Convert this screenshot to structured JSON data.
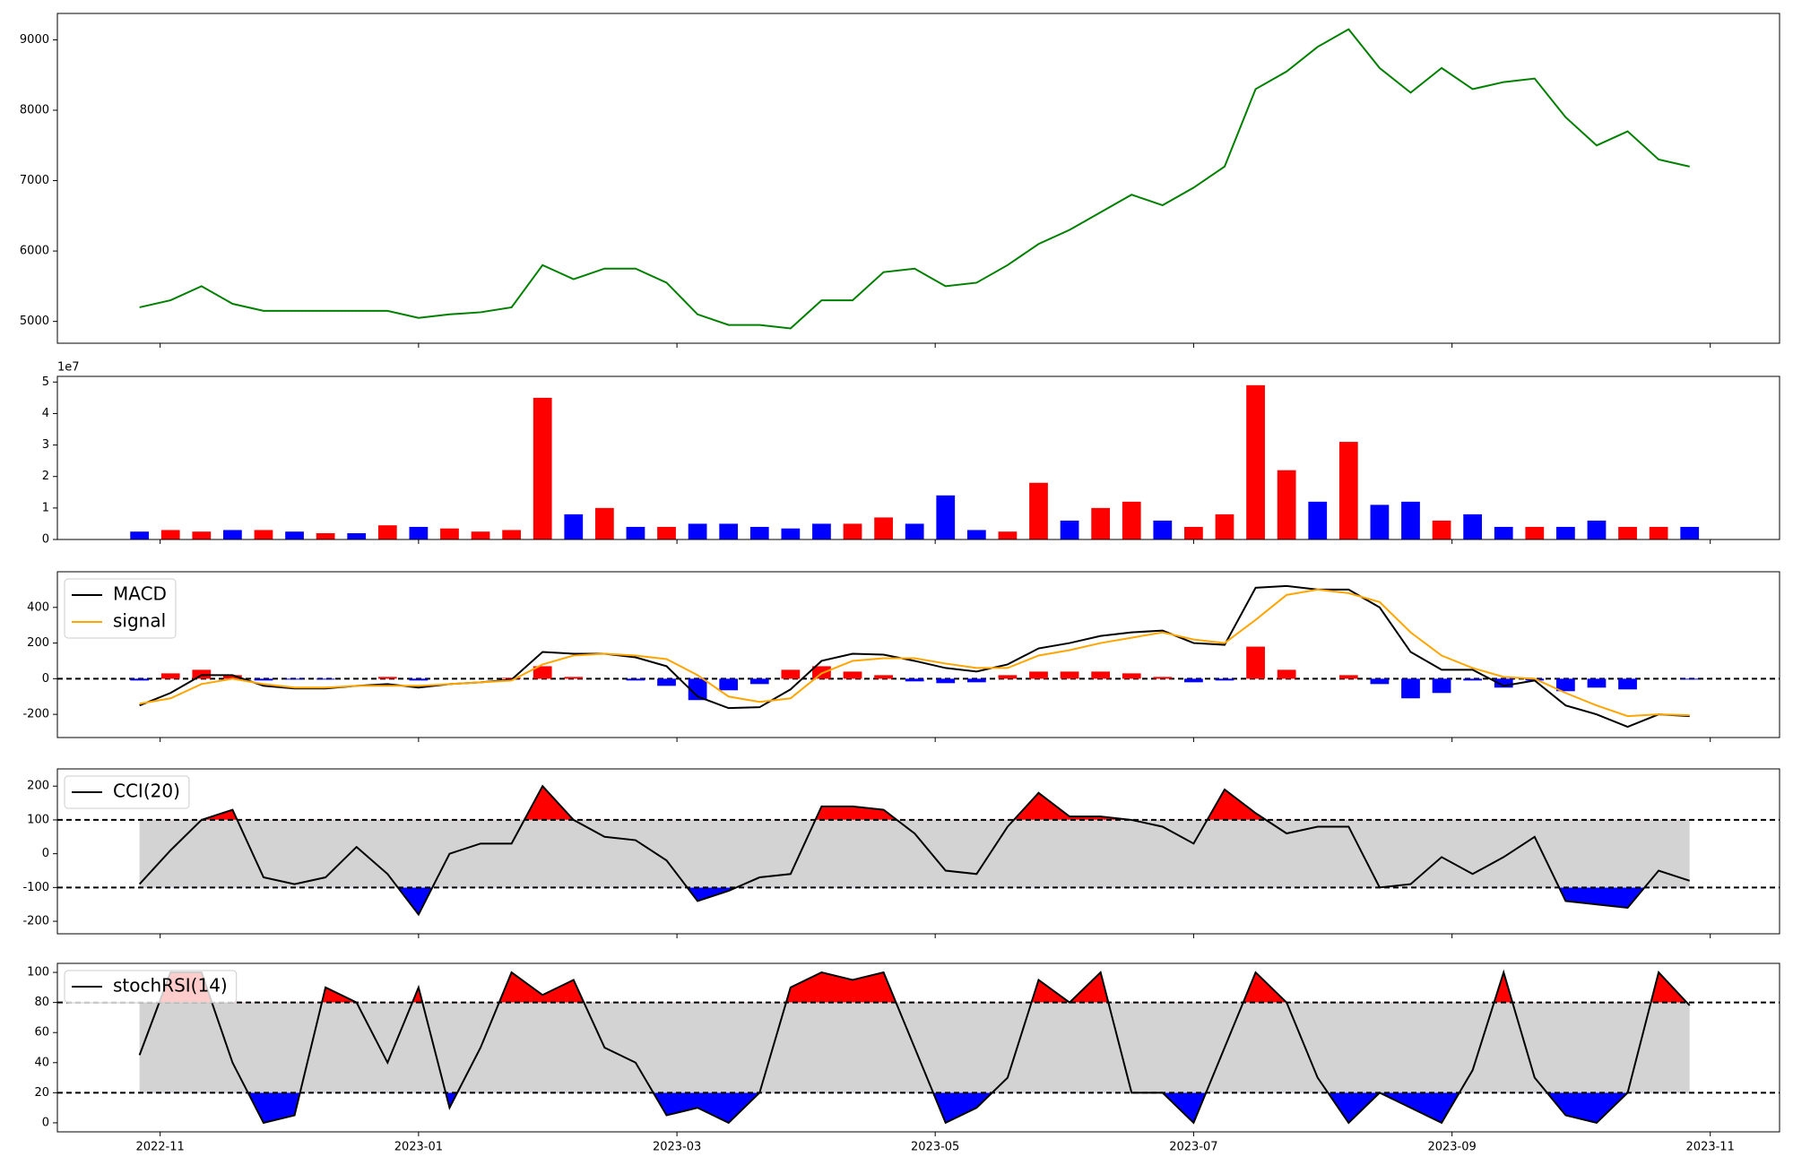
{
  "chart_data": [
    {
      "type": "line",
      "x": [
        2022.82,
        2022.84,
        2022.86,
        2022.88,
        2022.9,
        2022.92,
        2022.94,
        2022.96,
        2022.98,
        2023.0,
        2023.02,
        2023.04,
        2023.06,
        2023.08,
        2023.1,
        2023.12,
        2023.14,
        2023.16,
        2023.18,
        2023.2,
        2023.22,
        2023.24,
        2023.26,
        2023.28,
        2023.3,
        2023.32,
        2023.34,
        2023.36,
        2023.38,
        2023.4,
        2023.42,
        2023.44,
        2023.46,
        2023.48,
        2023.5,
        2023.52,
        2023.54,
        2023.56,
        2023.58,
        2023.6,
        2023.62,
        2023.64,
        2023.66,
        2023.68,
        2023.7,
        2023.72,
        2023.74,
        2023.76,
        2023.78,
        2023.8,
        2023.82
      ],
      "xlim": [
        2022.767,
        2023.878
      ],
      "ylim": [
        4690,
        9375
      ],
      "yticks": [
        5000,
        6000,
        7000,
        8000,
        9000
      ],
      "series": [
        {
          "color": "green",
          "values": [
            5200,
            5300,
            5500,
            5250,
            5150,
            5150,
            5150,
            5150,
            5150,
            5050,
            5100,
            5130,
            5200,
            5800,
            5600,
            5750,
            5750,
            5550,
            5100,
            4950,
            4950,
            4900,
            5300,
            5300,
            5700,
            5750,
            5500,
            5550,
            5800,
            6100,
            6300,
            6550,
            6800,
            6650,
            6900,
            7200,
            8300,
            8550,
            8900,
            9150,
            8600,
            8250,
            8600,
            8300,
            8400,
            8450,
            7900,
            7500,
            7700,
            7300,
            7200
          ]
        }
      ]
    },
    {
      "type": "bar",
      "x": [
        2022.82,
        2022.84,
        2022.86,
        2022.88,
        2022.9,
        2022.92,
        2022.94,
        2022.96,
        2022.98,
        2023.0,
        2023.02,
        2023.04,
        2023.06,
        2023.08,
        2023.1,
        2023.12,
        2023.14,
        2023.16,
        2023.18,
        2023.2,
        2023.22,
        2023.24,
        2023.26,
        2023.28,
        2023.3,
        2023.32,
        2023.34,
        2023.36,
        2023.38,
        2023.4,
        2023.42,
        2023.44,
        2023.46,
        2023.48,
        2023.5,
        2023.52,
        2023.54,
        2023.56,
        2023.58,
        2023.6,
        2023.62,
        2023.64,
        2023.66,
        2023.68,
        2023.7,
        2023.72,
        2023.74,
        2023.76,
        2023.78,
        2023.8,
        2023.82
      ],
      "xlim": [
        2022.767,
        2023.878
      ],
      "ylim": [
        0,
        5.18
      ],
      "yticks": [
        0,
        1,
        2,
        3,
        4,
        5
      ],
      "offset_label": "1e7",
      "values": [
        0.25,
        0.3,
        0.25,
        0.3,
        0.3,
        0.25,
        0.2,
        0.2,
        0.45,
        0.4,
        0.35,
        0.25,
        0.3,
        4.5,
        0.8,
        1.0,
        0.4,
        0.4,
        0.5,
        0.5,
        0.4,
        0.35,
        0.5,
        0.5,
        0.7,
        0.5,
        1.4,
        0.3,
        0.25,
        1.8,
        0.6,
        1.0,
        1.2,
        0.6,
        0.4,
        0.8,
        4.9,
        2.2,
        1.2,
        3.1,
        1.1,
        1.2,
        0.6,
        0.8,
        0.4,
        0.4,
        0.4,
        0.6,
        0.4,
        0.4,
        0.4
      ],
      "colors": [
        "blue",
        "red",
        "red",
        "blue",
        "red",
        "blue",
        "red",
        "blue",
        "red",
        "blue",
        "red",
        "red",
        "red",
        "red",
        "blue",
        "red",
        "blue",
        "red",
        "blue",
        "blue",
        "blue",
        "blue",
        "blue",
        "red",
        "red",
        "blue",
        "blue",
        "blue",
        "red",
        "red",
        "blue",
        "red",
        "red",
        "blue",
        "red",
        "red",
        "red",
        "red",
        "blue",
        "red",
        "blue",
        "blue",
        "red",
        "blue",
        "blue",
        "red",
        "blue",
        "blue",
        "red",
        "red",
        "blue"
      ]
    },
    {
      "type": "line",
      "x": [
        2022.82,
        2022.84,
        2022.86,
        2022.88,
        2022.9,
        2022.92,
        2022.94,
        2022.96,
        2022.98,
        2023.0,
        2023.02,
        2023.04,
        2023.06,
        2023.08,
        2023.1,
        2023.12,
        2023.14,
        2023.16,
        2023.18,
        2023.2,
        2023.22,
        2023.24,
        2023.26,
        2023.28,
        2023.3,
        2023.32,
        2023.34,
        2023.36,
        2023.38,
        2023.4,
        2023.42,
        2023.44,
        2023.46,
        2023.48,
        2023.5,
        2023.52,
        2023.54,
        2023.56,
        2023.58,
        2023.6,
        2023.62,
        2023.64,
        2023.66,
        2023.68,
        2023.7,
        2023.72,
        2023.74,
        2023.76,
        2023.78,
        2023.8,
        2023.82
      ],
      "xlim": [
        2022.767,
        2023.878
      ],
      "ylim": [
        -330,
        600
      ],
      "yticks": [
        -200,
        0,
        200,
        400
      ],
      "hline": 0,
      "bars": {
        "pos_color": "red",
        "neg_color": "blue",
        "values": [
          -10,
          30,
          50,
          20,
          -10,
          -5,
          -5,
          0,
          10,
          -10,
          0,
          0,
          5,
          70,
          10,
          0,
          -10,
          -40,
          -120,
          -65,
          -30,
          50,
          70,
          40,
          20,
          -15,
          -25,
          -20,
          20,
          40,
          40,
          40,
          30,
          10,
          -20,
          -10,
          180,
          50,
          0,
          20,
          -30,
          -110,
          -80,
          -10,
          -50,
          -10,
          -70,
          -50,
          -60,
          0,
          -5
        ]
      },
      "series": [
        {
          "name": "MACD",
          "color": "black",
          "values": [
            -150,
            -80,
            20,
            20,
            -40,
            -55,
            -55,
            -40,
            -30,
            -50,
            -30,
            -20,
            -5,
            150,
            140,
            140,
            120,
            70,
            -100,
            -165,
            -160,
            -60,
            100,
            140,
            135,
            100,
            60,
            40,
            80,
            170,
            200,
            240,
            260,
            270,
            200,
            190,
            510,
            520,
            500,
            500,
            400,
            150,
            50,
            50,
            -40,
            -10,
            -150,
            -200,
            -270,
            -200,
            -210
          ]
        },
        {
          "name": "signal",
          "color": "orange",
          "values": [
            -140,
            -110,
            -30,
            0,
            -30,
            -50,
            -50,
            -40,
            -40,
            -40,
            -30,
            -20,
            -10,
            80,
            130,
            140,
            130,
            110,
            20,
            -100,
            -130,
            -110,
            30,
            100,
            115,
            115,
            85,
            60,
            60,
            130,
            160,
            200,
            230,
            260,
            220,
            200,
            330,
            470,
            500,
            480,
            430,
            260,
            130,
            60,
            10,
            0,
            -80,
            -150,
            -210,
            -200,
            -205
          ]
        }
      ]
    },
    {
      "type": "line",
      "x": [
        2022.82,
        2022.84,
        2022.86,
        2022.88,
        2022.9,
        2022.92,
        2022.94,
        2022.96,
        2022.98,
        2023.0,
        2023.02,
        2023.04,
        2023.06,
        2023.08,
        2023.1,
        2023.12,
        2023.14,
        2023.16,
        2023.18,
        2023.2,
        2023.22,
        2023.24,
        2023.26,
        2023.28,
        2023.3,
        2023.32,
        2023.34,
        2023.36,
        2023.38,
        2023.4,
        2023.42,
        2023.44,
        2023.46,
        2023.48,
        2023.5,
        2023.52,
        2023.54,
        2023.56,
        2023.58,
        2023.6,
        2023.62,
        2023.64,
        2023.66,
        2023.68,
        2023.7,
        2023.72,
        2023.74,
        2023.76,
        2023.78,
        2023.8,
        2023.82
      ],
      "xlim": [
        2022.767,
        2023.878
      ],
      "ylim": [
        -237,
        251
      ],
      "yticks": [
        -200,
        -100,
        0,
        100,
        200
      ],
      "bands": {
        "lower": -100,
        "upper": 100,
        "fill": "#d3d3d3",
        "above_color": "red",
        "below_color": "blue"
      },
      "series": [
        {
          "name": "CCI(20)",
          "color": "black",
          "values": [
            -90,
            10,
            100,
            130,
            -70,
            -90,
            -70,
            20,
            -60,
            -180,
            0,
            30,
            30,
            200,
            100,
            50,
            40,
            -20,
            -140,
            -110,
            -70,
            -60,
            140,
            140,
            130,
            60,
            -50,
            -60,
            80,
            180,
            110,
            110,
            100,
            80,
            30,
            190,
            120,
            60,
            80,
            80,
            -100,
            -90,
            -10,
            -60,
            -10,
            50,
            -140,
            -150,
            -160,
            -50,
            -80
          ]
        }
      ]
    },
    {
      "type": "line",
      "x": [
        2022.82,
        2022.84,
        2022.86,
        2022.88,
        2022.9,
        2022.92,
        2022.94,
        2022.96,
        2022.98,
        2023.0,
        2023.02,
        2023.04,
        2023.06,
        2023.08,
        2023.1,
        2023.12,
        2023.14,
        2023.16,
        2023.18,
        2023.2,
        2023.22,
        2023.24,
        2023.26,
        2023.28,
        2023.3,
        2023.32,
        2023.34,
        2023.36,
        2023.38,
        2023.4,
        2023.42,
        2023.44,
        2023.46,
        2023.48,
        2023.5,
        2023.52,
        2023.54,
        2023.56,
        2023.58,
        2023.6,
        2023.62,
        2023.64,
        2023.66,
        2023.68,
        2023.7,
        2023.72,
        2023.74,
        2023.76,
        2023.78,
        2023.8,
        2023.82
      ],
      "xlim": [
        2022.767,
        2023.878
      ],
      "ylim": [
        -6,
        106
      ],
      "yticks": [
        0,
        20,
        40,
        60,
        80,
        100
      ],
      "xticks": [
        {
          "value": 2022.8333,
          "label": "2022-11"
        },
        {
          "value": 2023.0,
          "label": "2023-01"
        },
        {
          "value": 2023.1667,
          "label": "2023-03"
        },
        {
          "value": 2023.3333,
          "label": "2023-05"
        },
        {
          "value": 2023.5,
          "label": "2023-07"
        },
        {
          "value": 2023.6667,
          "label": "2023-09"
        },
        {
          "value": 2023.8333,
          "label": "2023-11"
        }
      ],
      "bands": {
        "lower": 20,
        "upper": 80,
        "fill": "#d3d3d3",
        "above_color": "red",
        "below_color": "blue"
      },
      "series": [
        {
          "name": "stochRSI(14)",
          "color": "black",
          "values": [
            45,
            100,
            100,
            40,
            0,
            5,
            90,
            80,
            40,
            90,
            10,
            50,
            100,
            85,
            95,
            50,
            40,
            5,
            10,
            0,
            20,
            90,
            100,
            95,
            100,
            50,
            0,
            10,
            30,
            95,
            80,
            100,
            20,
            20,
            0,
            50,
            100,
            80,
            30,
            0,
            20,
            10,
            0,
            35,
            100,
            30,
            5,
            0,
            20,
            100,
            78
          ]
        }
      ]
    }
  ]
}
